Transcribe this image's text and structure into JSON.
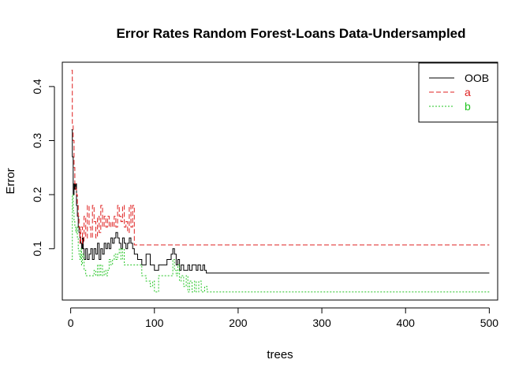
{
  "chart_data": {
    "type": "line",
    "title": "Error Rates Random Forest-Loans Data-Undersampled",
    "xlabel": "trees",
    "ylabel": "Error",
    "xlim": [
      -10,
      510
    ],
    "ylim": [
      0.005,
      0.445
    ],
    "xticks": [
      0,
      100,
      200,
      300,
      400,
      500
    ],
    "yticks": [
      0.1,
      0.2,
      0.3,
      0.4
    ],
    "xtick_labels": [
      "0",
      "100",
      "200",
      "300",
      "400",
      "500"
    ],
    "ytick_labels": [
      "0.1",
      "0.2",
      "0.3",
      "0.4"
    ],
    "legend_position": "top-right",
    "grid": false,
    "series": [
      {
        "name": "OOB",
        "color": "#000000",
        "dash": "solid",
        "x": [
          1,
          2,
          3,
          4,
          5,
          6,
          7,
          8,
          9,
          10,
          11,
          12,
          13,
          14,
          15,
          16,
          18,
          20,
          22,
          24,
          26,
          28,
          30,
          32,
          34,
          36,
          38,
          40,
          42,
          44,
          46,
          48,
          50,
          52,
          54,
          56,
          58,
          60,
          62,
          64,
          66,
          68,
          70,
          72,
          74,
          76,
          80,
          85,
          90,
          95,
          100,
          105,
          110,
          115,
          120,
          122,
          124,
          126,
          128,
          130,
          132,
          135,
          140,
          142,
          145,
          150,
          152,
          155,
          158,
          160,
          162,
          500
        ],
        "values": [
          0.32,
          0.27,
          0.2,
          0.22,
          0.21,
          0.22,
          0.18,
          0.16,
          0.14,
          0.13,
          0.12,
          0.11,
          0.1,
          0.12,
          0.1,
          0.08,
          0.1,
          0.08,
          0.09,
          0.1,
          0.08,
          0.1,
          0.09,
          0.11,
          0.08,
          0.1,
          0.09,
          0.11,
          0.1,
          0.11,
          0.1,
          0.12,
          0.11,
          0.12,
          0.13,
          0.12,
          0.11,
          0.1,
          0.12,
          0.11,
          0.1,
          0.11,
          0.12,
          0.11,
          0.1,
          0.09,
          0.08,
          0.07,
          0.09,
          0.07,
          0.06,
          0.07,
          0.07,
          0.08,
          0.09,
          0.1,
          0.09,
          0.07,
          0.08,
          0.06,
          0.07,
          0.06,
          0.07,
          0.06,
          0.07,
          0.06,
          0.07,
          0.06,
          0.07,
          0.06,
          0.055,
          0.055
        ]
      },
      {
        "name": "a",
        "color": "#DF2020",
        "dash": "6,3",
        "x": [
          1,
          2,
          3,
          4,
          5,
          6,
          7,
          8,
          9,
          10,
          11,
          12,
          14,
          16,
          18,
          20,
          22,
          24,
          26,
          28,
          30,
          32,
          34,
          36,
          38,
          40,
          42,
          44,
          46,
          48,
          50,
          52,
          54,
          56,
          58,
          60,
          62,
          64,
          66,
          68,
          70,
          72,
          74,
          76,
          80,
          500
        ],
        "values": [
          0.43,
          0.33,
          0.3,
          0.25,
          0.22,
          0.21,
          0.2,
          0.18,
          0.16,
          0.14,
          0.11,
          0.14,
          0.11,
          0.16,
          0.12,
          0.18,
          0.14,
          0.12,
          0.18,
          0.15,
          0.12,
          0.16,
          0.13,
          0.18,
          0.14,
          0.16,
          0.14,
          0.16,
          0.14,
          0.15,
          0.14,
          0.16,
          0.14,
          0.18,
          0.16,
          0.15,
          0.18,
          0.14,
          0.15,
          0.13,
          0.18,
          0.14,
          0.18,
          0.107,
          0.107,
          0.107
        ]
      },
      {
        "name": "b",
        "color": "#22C422",
        "dash": "2,2",
        "x": [
          1,
          2,
          3,
          4,
          5,
          6,
          7,
          8,
          9,
          10,
          11,
          12,
          13,
          14,
          16,
          18,
          20,
          24,
          28,
          30,
          32,
          34,
          36,
          38,
          40,
          42,
          44,
          46,
          48,
          50,
          52,
          54,
          56,
          58,
          60,
          62,
          64,
          68,
          72,
          76,
          80,
          85,
          90,
          95,
          98,
          100,
          105,
          110,
          115,
          120,
          122,
          124,
          126,
          128,
          130,
          132,
          135,
          138,
          140,
          142,
          145,
          148,
          150,
          153,
          156,
          160,
          163,
          500
        ],
        "values": [
          0.08,
          0.2,
          0.17,
          0.15,
          0.14,
          0.13,
          0.14,
          0.12,
          0.1,
          0.09,
          0.08,
          0.1,
          0.07,
          0.09,
          0.06,
          0.05,
          0.05,
          0.05,
          0.06,
          0.05,
          0.07,
          0.05,
          0.07,
          0.05,
          0.06,
          0.05,
          0.06,
          0.08,
          0.07,
          0.08,
          0.09,
          0.08,
          0.09,
          0.1,
          0.08,
          0.1,
          0.07,
          0.07,
          0.07,
          0.07,
          0.07,
          0.05,
          0.04,
          0.03,
          0.04,
          0.02,
          0.05,
          0.05,
          0.05,
          0.05,
          0.08,
          0.06,
          0.05,
          0.07,
          0.04,
          0.05,
          0.03,
          0.05,
          0.02,
          0.04,
          0.02,
          0.04,
          0.02,
          0.04,
          0.02,
          0.03,
          0.02,
          0.02
        ]
      }
    ]
  }
}
